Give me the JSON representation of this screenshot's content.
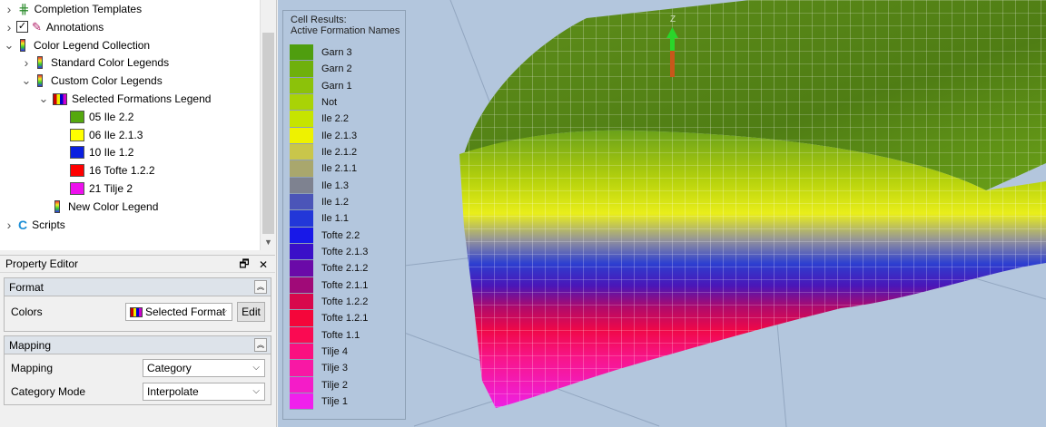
{
  "tree": {
    "items": [
      {
        "label": "Completion Templates",
        "indent": 0,
        "arrow": ">",
        "icon": "completion-templates-icon"
      },
      {
        "label": "Annotations",
        "indent": 0,
        "arrow": ">",
        "icon": "annotations-icon",
        "checked": true
      },
      {
        "label": "Color Legend Collection",
        "indent": 0,
        "arrow": "v",
        "icon": "color-legend-icon"
      },
      {
        "label": "Standard Color Legends",
        "indent": 1,
        "arrow": ">",
        "icon": "color-legend-icon"
      },
      {
        "label": "Custom Color Legends",
        "indent": 1,
        "arrow": "v",
        "icon": "color-legend-icon"
      },
      {
        "label": "Selected Formations Legend",
        "indent": 2,
        "arrow": "v",
        "icon": "formations-legend-icon"
      },
      {
        "label": "05 Ile 2.2",
        "indent": 3,
        "arrow": "",
        "swatch": "#55a80e"
      },
      {
        "label": "06 Ile 2.1.3",
        "indent": 3,
        "arrow": "",
        "swatch": "#ffff00"
      },
      {
        "label": "10 Ile 1.2",
        "indent": 3,
        "arrow": "",
        "swatch": "#0a1fe0"
      },
      {
        "label": "16 Tofte 1.2.2",
        "indent": 3,
        "arrow": "",
        "swatch": "#ff0000"
      },
      {
        "label": "21 Tilje 2",
        "indent": 3,
        "arrow": "",
        "swatch": "#ee10ee"
      },
      {
        "label": "New Color Legend",
        "indent": 2,
        "arrow": "",
        "icon": "color-legend-icon"
      },
      {
        "label": "Scripts",
        "indent": 0,
        "arrow": ">",
        "icon": "scripts-icon"
      }
    ]
  },
  "property_editor": {
    "title": "Property Editor",
    "restore_glyph": "🗗",
    "close_glyph": "✕",
    "format_group": {
      "title": "Format",
      "colors_label": "Colors",
      "colors_value": "Selected Format",
      "edit_label": "Edit"
    },
    "mapping_group": {
      "title": "Mapping",
      "mapping_label": "Mapping",
      "mapping_value": "Category",
      "category_mode_label": "Category Mode",
      "category_mode_value": "Interpolate"
    }
  },
  "legend": {
    "title_line1": "Cell Results:",
    "title_line2": "Active Formation Names",
    "entries": [
      {
        "label": "Garn 3",
        "color": "#4f9e0f"
      },
      {
        "label": "Garn 2",
        "color": "#6fb00c"
      },
      {
        "label": "Garn 1",
        "color": "#8cc20a"
      },
      {
        "label": "Not",
        "color": "#a9d306"
      },
      {
        "label": "Ile 2.2",
        "color": "#c6e400"
      },
      {
        "label": "Ile 2.1.3",
        "color": "#eef200"
      },
      {
        "label": "Ile 2.1.2",
        "color": "#c9c64a"
      },
      {
        "label": "Ile 2.1.1",
        "color": "#a9a76d"
      },
      {
        "label": "Ile 1.3",
        "color": "#7e8290"
      },
      {
        "label": "Ile 1.2",
        "color": "#4b55b8"
      },
      {
        "label": "Ile 1.1",
        "color": "#2237d8"
      },
      {
        "label": "Tofte 2.2",
        "color": "#1818e8"
      },
      {
        "label": "Tofte 2.1.3",
        "color": "#3a10c8"
      },
      {
        "label": "Tofte 2.1.2",
        "color": "#6a0aa8"
      },
      {
        "label": "Tofte 2.1.1",
        "color": "#a00a78"
      },
      {
        "label": "Tofte 1.2.2",
        "color": "#d8084c"
      },
      {
        "label": "Tofte 1.2.1",
        "color": "#f4063a"
      },
      {
        "label": "Tofte 1.1",
        "color": "#fa0a52"
      },
      {
        "label": "Tilje 4",
        "color": "#fb1080"
      },
      {
        "label": "Tilje 3",
        "color": "#f818a4"
      },
      {
        "label": "Tilje 2",
        "color": "#f41cc8"
      },
      {
        "label": "Tilje 1",
        "color": "#f020ec"
      }
    ]
  },
  "view": {
    "axis_label": "Z",
    "background_color": "#b3c6dd"
  }
}
